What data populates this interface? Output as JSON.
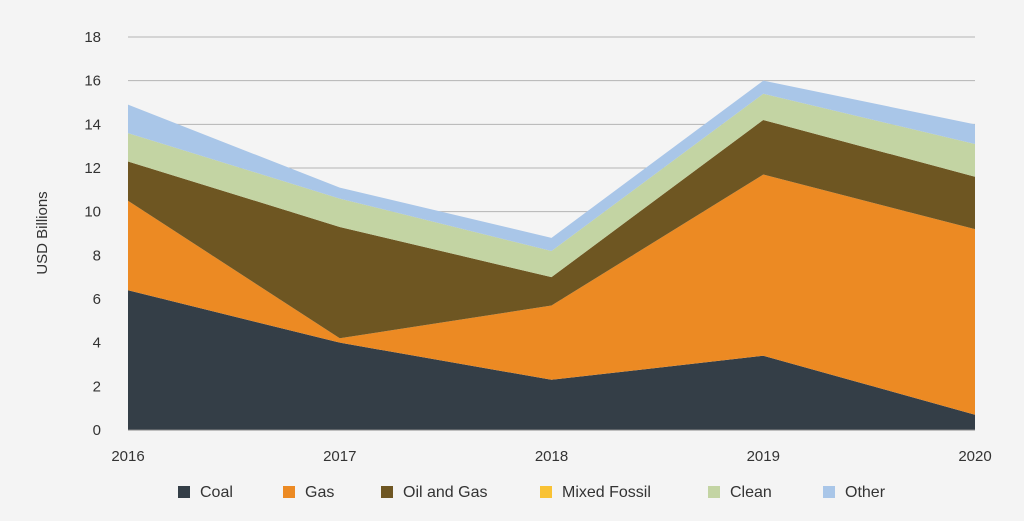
{
  "chart_data": {
    "type": "area",
    "stacked": true,
    "x": [
      "2016",
      "2017",
      "2018",
      "2019",
      "2020"
    ],
    "ylabel": "USD Billions",
    "ylim": [
      0,
      18
    ],
    "yticks": [
      0,
      2,
      4,
      6,
      8,
      10,
      12,
      14,
      16,
      18
    ],
    "grid": true,
    "legend_position": "bottom",
    "series": [
      {
        "name": "Coal",
        "color": "#343e47",
        "values": [
          6.4,
          4.0,
          2.3,
          3.4,
          0.7
        ]
      },
      {
        "name": "Gas",
        "color": "#ec8a23",
        "values": [
          4.1,
          0.2,
          3.4,
          8.3,
          8.5
        ]
      },
      {
        "name": "Oil and Gas",
        "color": "#6e5622",
        "values": [
          1.8,
          5.1,
          1.3,
          2.5,
          2.4
        ]
      },
      {
        "name": "Mixed Fossil",
        "color": "#f9c234",
        "values": [
          0,
          0,
          0,
          0,
          0
        ]
      },
      {
        "name": "Clean",
        "color": "#c3d4a3",
        "values": [
          1.3,
          1.3,
          1.2,
          1.2,
          1.5
        ]
      },
      {
        "name": "Other",
        "color": "#a9c6e8",
        "values": [
          1.3,
          0.5,
          0.6,
          0.6,
          0.9
        ]
      }
    ]
  }
}
